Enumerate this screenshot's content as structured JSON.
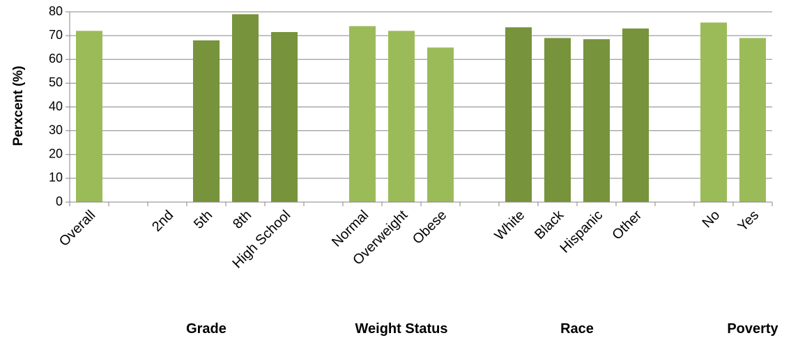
{
  "chart_data": {
    "type": "bar",
    "ylabel": "Perxcent (%)",
    "xlabel": "",
    "ylim": [
      0,
      80
    ],
    "yticks": [
      0,
      10,
      20,
      30,
      40,
      50,
      60,
      70,
      80
    ],
    "grid": true,
    "legend": "none",
    "colors": {
      "light": "#9BBB59",
      "dark": "#77933C",
      "grid": "#868686",
      "axis": "#868686"
    },
    "categories": [
      "Overall",
      "",
      "2nd",
      "5th",
      "8th",
      "High School",
      "",
      "Normal",
      "Overweight",
      "Obese",
      "",
      "White",
      "Black",
      "Hispanic",
      "Other",
      "",
      "No",
      "Yes"
    ],
    "values": [
      72,
      null,
      null,
      68,
      79,
      71.5,
      null,
      74,
      72,
      65,
      null,
      73.5,
      69,
      68.5,
      73,
      null,
      75.5,
      69
    ],
    "bar_colors": [
      "light",
      null,
      "dark",
      "dark",
      "dark",
      "dark",
      null,
      "light",
      "light",
      "light",
      null,
      "dark",
      "dark",
      "dark",
      "dark",
      null,
      "light",
      "light"
    ],
    "groups": [
      {
        "label": "Grade",
        "center_index": 3
      },
      {
        "label": "Weight Status",
        "center_index": 8
      },
      {
        "label": "Race",
        "center_index": 12.5
      },
      {
        "label": "Poverty",
        "center_index": 17
      }
    ]
  }
}
